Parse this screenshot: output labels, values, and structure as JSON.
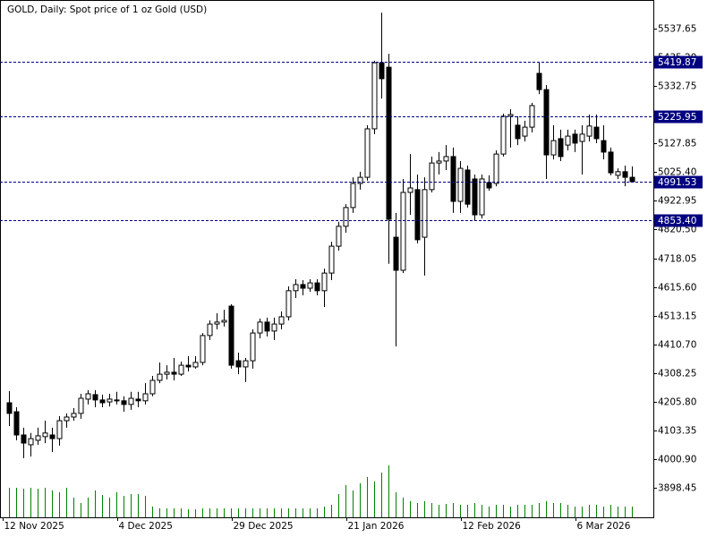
{
  "chart_data": {
    "type": "candlestick",
    "title": "GOLD, Daily:  Spot price of 1 oz Gold (USD)",
    "categories": [
      "12 Nov 2025",
      null,
      null,
      null,
      null,
      null,
      null,
      null,
      null,
      null,
      null,
      null,
      null,
      null,
      null,
      null,
      "4 Dec 2025",
      null,
      null,
      null,
      null,
      null,
      null,
      null,
      null,
      null,
      null,
      null,
      null,
      null,
      null,
      null,
      "29 Dec 2025",
      null,
      null,
      null,
      null,
      null,
      null,
      null,
      null,
      null,
      null,
      null,
      null,
      null,
      null,
      null,
      "21 Jan 2026",
      null,
      null,
      null,
      null,
      null,
      null,
      null,
      null,
      null,
      null,
      null,
      null,
      null,
      null,
      null,
      "12 Feb 2026",
      null,
      null,
      null,
      null,
      null,
      null,
      null,
      null,
      null,
      null,
      null,
      null,
      null,
      null,
      null,
      "6 Mar 2026",
      null,
      null,
      null,
      null,
      null,
      null,
      null
    ],
    "open": [
      4202,
      4170,
      4087,
      4052,
      4068,
      4081,
      4087,
      4074,
      4138,
      4151,
      4164,
      4215,
      4231,
      4212,
      4205,
      4212,
      4209,
      4196,
      4215,
      4209,
      4234,
      4282,
      4304,
      4311,
      4304,
      4336,
      4330,
      4346,
      4442,
      4483,
      4490,
      4547,
      4352,
      4330,
      4352,
      4451,
      4490,
      4458,
      4483,
      4509,
      4602,
      4624,
      4611,
      4630,
      4602,
      4665,
      4761,
      4832,
      4899,
      4985,
      5007,
      5180,
      5416,
      5400,
      4793,
      4675,
      4953,
      4963,
      4793,
      4963,
      5058,
      5065,
      5081,
      4921,
      5033,
      5001,
      4873,
      4988,
      4985,
      5090,
      5225,
      5193,
      5154,
      5186,
      5378,
      5320,
      5087,
      5145,
      5122,
      5161,
      5135,
      5154,
      5186,
      5138,
      5097,
      5014,
      5027,
      5007
    ],
    "high": [
      4244,
      4186,
      4113,
      4094,
      4113,
      4138,
      4113,
      4154,
      4164,
      4183,
      4234,
      4247,
      4247,
      4231,
      4234,
      4241,
      4225,
      4241,
      4241,
      4272,
      4298,
      4346,
      4336,
      4362,
      4349,
      4368,
      4368,
      4451,
      4496,
      4522,
      4534,
      4554,
      4381,
      4362,
      4464,
      4503,
      4506,
      4506,
      4528,
      4618,
      4643,
      4640,
      4643,
      4643,
      4681,
      4777,
      4848,
      4911,
      5007,
      5027,
      5193,
      5423,
      5595,
      5448,
      4880,
      5001,
      5090,
      5017,
      5007,
      5081,
      5097,
      5122,
      5113,
      5065,
      5049,
      5017,
      5017,
      5014,
      5103,
      5234,
      5250,
      5225,
      5209,
      5273,
      5419,
      5336,
      5193,
      5177,
      5177,
      5177,
      5193,
      5231,
      5231,
      5193,
      5113,
      5039,
      5049,
      5046
    ],
    "low": [
      4119,
      4068,
      4004,
      4010,
      4052,
      4058,
      4026,
      4049,
      4113,
      4138,
      4145,
      4196,
      4186,
      4186,
      4189,
      4196,
      4170,
      4177,
      4186,
      4196,
      4225,
      4272,
      4285,
      4282,
      4298,
      4314,
      4324,
      4336,
      4426,
      4464,
      4474,
      4324,
      4304,
      4276,
      4324,
      4432,
      4439,
      4426,
      4464,
      4496,
      4576,
      4586,
      4598,
      4586,
      4544,
      4640,
      4745,
      4809,
      4880,
      4963,
      4995,
      5161,
      5288,
      4698,
      4403,
      4665,
      4873,
      4771,
      4656,
      4953,
      5017,
      5033,
      4880,
      4880,
      4899,
      4854,
      4860,
      4959,
      4975,
      5081,
      5113,
      5122,
      5135,
      5167,
      5304,
      5001,
      5071,
      5065,
      5103,
      5097,
      5017,
      5135,
      5129,
      5071,
      5014,
      5001,
      4975,
      4988
    ],
    "close": [
      4164,
      4087,
      4058,
      4074,
      4084,
      4094,
      4074,
      4138,
      4151,
      4164,
      4218,
      4234,
      4212,
      4202,
      4215,
      4209,
      4196,
      4218,
      4209,
      4234,
      4282,
      4304,
      4311,
      4304,
      4336,
      4330,
      4346,
      4442,
      4483,
      4490,
      4496,
      4336,
      4330,
      4352,
      4451,
      4490,
      4458,
      4483,
      4509,
      4602,
      4624,
      4611,
      4630,
      4602,
      4665,
      4761,
      4832,
      4899,
      4985,
      5007,
      5180,
      5416,
      5359,
      4857,
      4675,
      4953,
      4969,
      4784,
      4963,
      5058,
      5065,
      5081,
      4921,
      5039,
      4911,
      4873,
      5001,
      4969,
      5090,
      5225,
      5231,
      5145,
      5186,
      5263,
      5320,
      5087,
      5138,
      5081,
      5154,
      5129,
      5161,
      5190,
      5145,
      5097,
      5023,
      5027,
      5007,
      4991.53
    ],
    "volume": [
      33,
      33,
      32,
      33,
      32,
      33,
      30,
      28,
      33,
      22,
      16,
      22,
      30,
      25,
      22,
      28,
      24,
      26,
      26,
      24,
      12,
      10,
      10,
      10,
      10,
      9,
      9,
      10,
      10,
      10,
      10,
      10,
      10,
      10,
      10,
      10,
      10,
      10,
      10,
      10,
      10,
      10,
      10,
      10,
      12,
      14,
      26,
      36,
      30,
      38,
      45,
      40,
      50,
      58,
      28,
      22,
      18,
      16,
      18,
      16,
      14,
      15,
      16,
      14,
      14,
      16,
      14,
      12,
      14,
      14,
      12,
      14,
      14,
      14,
      16,
      18,
      16,
      16,
      14,
      12,
      12,
      14,
      14,
      12,
      14,
      12,
      12,
      12
    ],
    "up_color": "#ffffff",
    "down_color": "#000000",
    "volume_color": "#008000",
    "ylim": [
      3793,
      5640
    ],
    "yticks": [
      3898.45,
      {
        "value": 4000.9,
        "label": "4000.90"
      },
      4103.35,
      {
        "value": 4205.8,
        "label": "4205.80"
      },
      4308.25,
      {
        "value": 4410.7,
        "label": "4410.70"
      },
      4513.15,
      {
        "value": 4615.6,
        "label": "4615.60"
      },
      4718.05,
      {
        "value": 4820.5,
        "label": "4820.50"
      },
      4922.95,
      {
        "value": 5025.4,
        "label": "5025.40"
      },
      5127.85,
      {
        "value": 5230.3,
        "label": "5230.30"
      },
      5332.75,
      {
        "value": 5435.2,
        "label": "5435.20"
      },
      5537.65
    ],
    "price_lines": [
      5419.87,
      5225.95,
      4991.53,
      {
        "value": 4853.4,
        "label": "4853.40"
      }
    ],
    "price_line_color": "#000080"
  }
}
